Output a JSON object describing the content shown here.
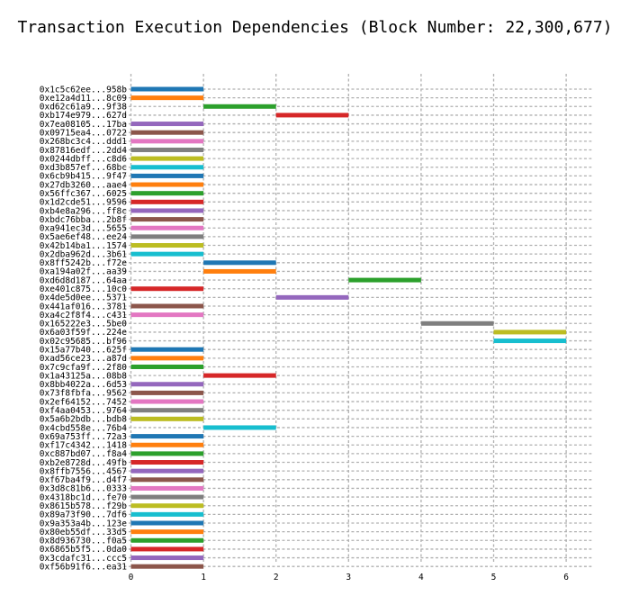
{
  "chart_data": {
    "type": "bar",
    "orientation": "horizontal-ranges",
    "title": "Transaction Execution Dependencies (Block Number: 22,300,677)",
    "xlabel": "",
    "ylabel": "",
    "xlim": [
      -0.1,
      6.35
    ],
    "x_ticks": [
      0,
      1,
      2,
      3,
      4,
      5,
      6
    ],
    "grid": true,
    "legend": "none",
    "transactions": [
      {
        "label": "0x1c5c62ee...958b",
        "start": 0,
        "end": 1,
        "color": "#1f77b4"
      },
      {
        "label": "0xe12a4d11...8c09",
        "start": 0,
        "end": 1,
        "color": "#ff7f0e"
      },
      {
        "label": "0xd62c61a9...9f38",
        "start": 1,
        "end": 2,
        "color": "#2ca02c"
      },
      {
        "label": "0xb174e979...627d",
        "start": 2,
        "end": 3,
        "color": "#d62728"
      },
      {
        "label": "0x7ea08105...17ba",
        "start": 0,
        "end": 1,
        "color": "#9467bd"
      },
      {
        "label": "0x09715ea4...0722",
        "start": 0,
        "end": 1,
        "color": "#8c564b"
      },
      {
        "label": "0x268bc3c4...ddd1",
        "start": 0,
        "end": 1,
        "color": "#e377c2"
      },
      {
        "label": "0x87816edf...2dd4",
        "start": 0,
        "end": 1,
        "color": "#7f7f7f"
      },
      {
        "label": "0x0244dbff...c8d6",
        "start": 0,
        "end": 1,
        "color": "#bcbd22"
      },
      {
        "label": "0xd3b857ef...68bc",
        "start": 0,
        "end": 1,
        "color": "#17becf"
      },
      {
        "label": "0x6cb9b415...9f47",
        "start": 0,
        "end": 1,
        "color": "#1f77b4"
      },
      {
        "label": "0x27db3260...aae4",
        "start": 0,
        "end": 1,
        "color": "#ff7f0e"
      },
      {
        "label": "0x56ffc367...6025",
        "start": 0,
        "end": 1,
        "color": "#2ca02c"
      },
      {
        "label": "0x1d2cde51...9596",
        "start": 0,
        "end": 1,
        "color": "#d62728"
      },
      {
        "label": "0xb4e8a296...ff8c",
        "start": 0,
        "end": 1,
        "color": "#9467bd"
      },
      {
        "label": "0xbdc76bba...2b8f",
        "start": 0,
        "end": 1,
        "color": "#8c564b"
      },
      {
        "label": "0xa941ec3d...5655",
        "start": 0,
        "end": 1,
        "color": "#e377c2"
      },
      {
        "label": "0x5ae6ef48...ee24",
        "start": 0,
        "end": 1,
        "color": "#7f7f7f"
      },
      {
        "label": "0x42b14ba1...1574",
        "start": 0,
        "end": 1,
        "color": "#bcbd22"
      },
      {
        "label": "0x2dba962d...3b61",
        "start": 0,
        "end": 1,
        "color": "#17becf"
      },
      {
        "label": "0x8ff5242b...f72e",
        "start": 1,
        "end": 2,
        "color": "#1f77b4"
      },
      {
        "label": "0xa194a02f...aa39",
        "start": 1,
        "end": 2,
        "color": "#ff7f0e"
      },
      {
        "label": "0xd6d8d187...64aa",
        "start": 3,
        "end": 4,
        "color": "#2ca02c"
      },
      {
        "label": "0xe401c875...10c0",
        "start": 0,
        "end": 1,
        "color": "#d62728"
      },
      {
        "label": "0x4de5d0ee...5371",
        "start": 2,
        "end": 3,
        "color": "#9467bd"
      },
      {
        "label": "0x441af016...3781",
        "start": 0,
        "end": 1,
        "color": "#8c564b"
      },
      {
        "label": "0xa4c2f8f4...c431",
        "start": 0,
        "end": 1,
        "color": "#e377c2"
      },
      {
        "label": "0x165222e3...5be0",
        "start": 4,
        "end": 5,
        "color": "#7f7f7f"
      },
      {
        "label": "0x6a03f59f...224e",
        "start": 5,
        "end": 6,
        "color": "#bcbd22"
      },
      {
        "label": "0x02c95685...bf96",
        "start": 5,
        "end": 6,
        "color": "#17becf"
      },
      {
        "label": "0x15a77b40...625f",
        "start": 0,
        "end": 1,
        "color": "#1f77b4"
      },
      {
        "label": "0xad56ce23...a87d",
        "start": 0,
        "end": 1,
        "color": "#ff7f0e"
      },
      {
        "label": "0x7c9cfa9f...2f80",
        "start": 0,
        "end": 1,
        "color": "#2ca02c"
      },
      {
        "label": "0x1a43125a...08b8",
        "start": 1,
        "end": 2,
        "color": "#d62728"
      },
      {
        "label": "0x8bb4022a...6d53",
        "start": 0,
        "end": 1,
        "color": "#9467bd"
      },
      {
        "label": "0x73f8fbfa...9562",
        "start": 0,
        "end": 1,
        "color": "#8c564b"
      },
      {
        "label": "0x2ef64152...7452",
        "start": 0,
        "end": 1,
        "color": "#e377c2"
      },
      {
        "label": "0xf4aa0453...9764",
        "start": 0,
        "end": 1,
        "color": "#7f7f7f"
      },
      {
        "label": "0x5a6b2bdb...bdb8",
        "start": 0,
        "end": 1,
        "color": "#bcbd22"
      },
      {
        "label": "0x4cbd558e...76b4",
        "start": 1,
        "end": 2,
        "color": "#17becf"
      },
      {
        "label": "0x69a753ff...72a3",
        "start": 0,
        "end": 1,
        "color": "#1f77b4"
      },
      {
        "label": "0xf17c4342...1418",
        "start": 0,
        "end": 1,
        "color": "#ff7f0e"
      },
      {
        "label": "0xc887bd07...f8a4",
        "start": 0,
        "end": 1,
        "color": "#2ca02c"
      },
      {
        "label": "0xb2e8728d...49fb",
        "start": 0,
        "end": 1,
        "color": "#d62728"
      },
      {
        "label": "0x8ffb7556...4567",
        "start": 0,
        "end": 1,
        "color": "#9467bd"
      },
      {
        "label": "0xf67ba4f9...d4f7",
        "start": 0,
        "end": 1,
        "color": "#8c564b"
      },
      {
        "label": "0x3d8c81b6...0333",
        "start": 0,
        "end": 1,
        "color": "#e377c2"
      },
      {
        "label": "0x4318bc1d...fe70",
        "start": 0,
        "end": 1,
        "color": "#7f7f7f"
      },
      {
        "label": "0x8615b578...f29b",
        "start": 0,
        "end": 1,
        "color": "#bcbd22"
      },
      {
        "label": "0x89a73f90...7df6",
        "start": 0,
        "end": 1,
        "color": "#17becf"
      },
      {
        "label": "0x9a353a4b...123e",
        "start": 0,
        "end": 1,
        "color": "#1f77b4"
      },
      {
        "label": "0x80eb55df...33d5",
        "start": 0,
        "end": 1,
        "color": "#ff7f0e"
      },
      {
        "label": "0x8d936730...f0a5",
        "start": 0,
        "end": 1,
        "color": "#2ca02c"
      },
      {
        "label": "0x6865b5f5...0da0",
        "start": 0,
        "end": 1,
        "color": "#d62728"
      },
      {
        "label": "0x3cdafc31...ccc5",
        "start": 0,
        "end": 1,
        "color": "#9467bd"
      },
      {
        "label": "0xf56b91f6...ea31",
        "start": 0,
        "end": 1,
        "color": "#8c564b"
      }
    ]
  }
}
